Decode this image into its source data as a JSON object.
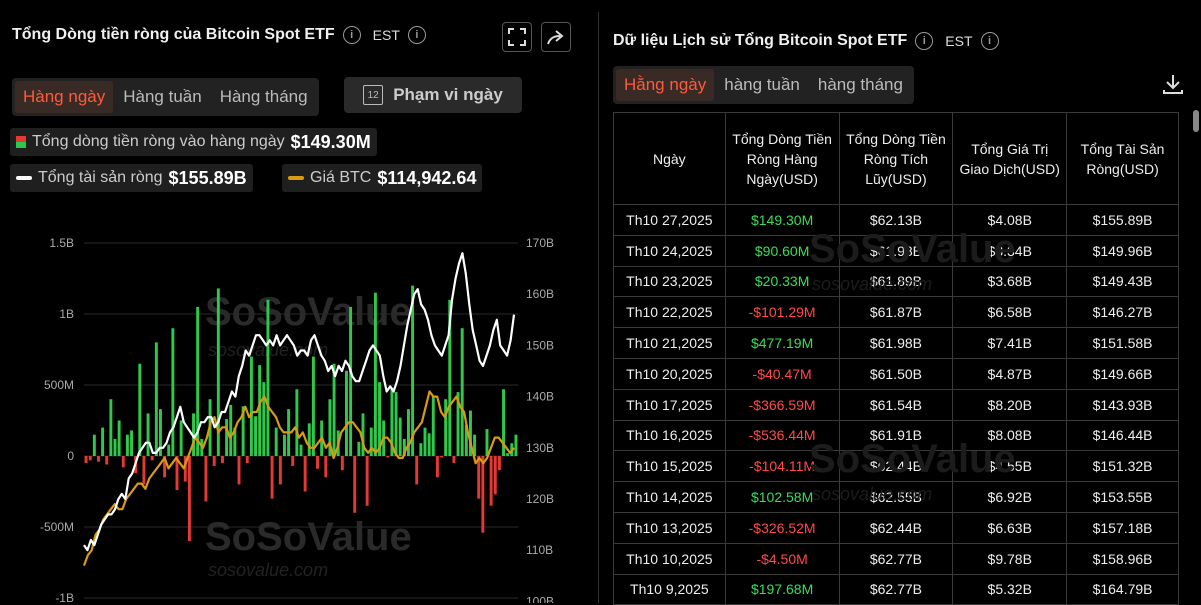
{
  "left": {
    "title": "Tổng Dòng tiền ròng của Bitcoin Spot ETF",
    "tz": "EST",
    "tabs": [
      "Hàng ngày",
      "Hàng tuần",
      "Hàng tháng"
    ],
    "range_label": "Phạm vi ngày",
    "range_icon_text": "12",
    "legend": {
      "inflow_label": "Tổng dòng tiền ròng vào hàng ngày",
      "inflow_value": "$149.30M",
      "assets_label": "Tổng tài sản ròng",
      "assets_value": "$155.89B",
      "btc_label": "Giá BTC",
      "btc_value": "$114,942.64"
    },
    "watermark": "SoSoValue",
    "watermark_sub": "sosovalue.com"
  },
  "right": {
    "title": "Dữ liệu Lịch sử Tổng Bitcoin Spot ETF",
    "tz": "EST",
    "tabs": [
      "Hằng ngày",
      "hàng tuần",
      "hàng tháng"
    ],
    "columns": [
      "Ngày",
      "Tổng Dòng Tiền Ròng Hàng Ngày(USD)",
      "Tổng Dòng Tiền Ròng Tích Lũy(USD)",
      "Tổng Giá Trị Giao Dịch(USD)",
      "Tổng Tài Sản Ròng(USD)"
    ],
    "rows": [
      [
        "Th10 27,2025",
        "$149.30M",
        "$62.13B",
        "$4.08B",
        "$155.89B"
      ],
      [
        "Th10 24,2025",
        "$90.60M",
        "$61.98B",
        "$3.34B",
        "$149.96B"
      ],
      [
        "Th10 23,2025",
        "$20.33M",
        "$61.89B",
        "$3.68B",
        "$149.43B"
      ],
      [
        "Th10 22,2025",
        "-$101.29M",
        "$61.87B",
        "$6.58B",
        "$146.27B"
      ],
      [
        "Th10 21,2025",
        "$477.19M",
        "$61.98B",
        "$7.41B",
        "$151.58B"
      ],
      [
        "Th10 20,2025",
        "-$40.47M",
        "$61.50B",
        "$4.87B",
        "$149.66B"
      ],
      [
        "Th10 17,2025",
        "-$366.59M",
        "$61.54B",
        "$8.20B",
        "$143.93B"
      ],
      [
        "Th10 16,2025",
        "-$536.44M",
        "$61.91B",
        "$8.08B",
        "$146.44B"
      ],
      [
        "Th10 15,2025",
        "-$104.11M",
        "$62.44B",
        "$4.55B",
        "$151.32B"
      ],
      [
        "Th10 14,2025",
        "$102.58M",
        "$62.55B",
        "$6.92B",
        "$153.55B"
      ],
      [
        "Th10 13,2025",
        "-$326.52M",
        "$62.44B",
        "$6.63B",
        "$157.18B"
      ],
      [
        "Th10 10,2025",
        "-$4.50M",
        "$62.77B",
        "$9.78B",
        "$158.96B"
      ],
      [
        "Th10 9,2025",
        "$197.68M",
        "$62.77B",
        "$5.32B",
        "$164.79B"
      ]
    ]
  },
  "chart_data": {
    "type": "bar",
    "left_axis_ticks": [
      "1.5B",
      "1B",
      "500M",
      "0",
      "-500M",
      "-1B"
    ],
    "right_axis_ticks": [
      "170B",
      "160B",
      "150B",
      "140B",
      "130B",
      "120B",
      "110B",
      "100B"
    ],
    "ylim_left": [
      -1000,
      1500
    ],
    "ylim_right": [
      100,
      170
    ],
    "colors": {
      "positive": "#2ec94b",
      "negative": "#e53935",
      "assets": "#ffffff",
      "btc": "#d99a14"
    },
    "series": [
      {
        "name": "Tổng dòng tiền ròng vào hàng ngày",
        "type": "bar",
        "values": [
          -50,
          -30,
          150,
          -40,
          200,
          -60,
          400,
          120,
          250,
          -80,
          150,
          180,
          -120,
          650,
          -200,
          300,
          -30,
          800,
          330,
          -150,
          80,
          900,
          -240,
          250,
          -180,
          -600,
          300,
          1050,
          120,
          -320,
          400,
          -70,
          1180,
          -50,
          260,
          360,
          200,
          -200,
          350,
          -50,
          700,
          280,
          640,
          520,
          1100,
          -300,
          200,
          -200,
          150,
          330,
          -70,
          470,
          80,
          -250,
          230,
          700,
          -90,
          250,
          -150,
          400,
          650,
          180,
          -100,
          600,
          1050,
          -400,
          100,
          300,
          -350,
          200,
          1150,
          520,
          250,
          -10,
          480,
          450,
          270,
          120,
          330,
          1200,
          -200,
          90,
          200,
          160,
          420,
          -150,
          -10,
          400,
          1100,
          -50,
          450,
          900,
          220,
          320,
          150,
          -300,
          -540,
          190,
          -350,
          -270,
          -100,
          470,
          20,
          90,
          150
        ]
      },
      {
        "name": "Tổng tài sản ròng",
        "type": "line",
        "axis": "right",
        "values": [
          111,
          110,
          112,
          111,
          113,
          115,
          116,
          117,
          117,
          118,
          120,
          121,
          120,
          124,
          125,
          127,
          129,
          130,
          131,
          131,
          129,
          129,
          130,
          130,
          131,
          133,
          134,
          136,
          138,
          135,
          134,
          133,
          132,
          133,
          135,
          135,
          136,
          136,
          134,
          135,
          137,
          137,
          139,
          141,
          140,
          144,
          146,
          149,
          148,
          150,
          152,
          152,
          151,
          150,
          151,
          150,
          152,
          150,
          151,
          152,
          151,
          150,
          148,
          149,
          149,
          148,
          151,
          152,
          150,
          148,
          147,
          145,
          146,
          144,
          146,
          145,
          147,
          146,
          144,
          143,
          143,
          145,
          147,
          149,
          150,
          149,
          148,
          144,
          141,
          142,
          141,
          143,
          146,
          150,
          154,
          157,
          160,
          161,
          158,
          157,
          155,
          152,
          150,
          149,
          148,
          150,
          152,
          159,
          163,
          166,
          168,
          164,
          158,
          153,
          150,
          147,
          146,
          148,
          150,
          153,
          155,
          150,
          149,
          148,
          151,
          156
        ]
      },
      {
        "name": "Giá BTC",
        "type": "line",
        "axis": "right",
        "values": [
          107,
          109,
          110,
          113,
          114,
          116,
          117,
          118,
          119,
          118,
          118,
          120,
          121,
          122,
          123,
          123,
          122,
          124,
          125,
          126,
          127,
          128,
          126,
          127,
          128,
          127,
          126,
          128,
          130,
          132,
          131,
          130,
          132,
          135,
          136,
          133,
          134,
          134,
          132,
          133,
          135,
          136,
          138,
          136,
          137,
          137,
          139,
          140,
          138,
          137,
          136,
          134,
          133,
          133,
          133,
          134,
          132,
          133,
          131,
          130,
          130,
          131,
          132,
          130,
          131,
          128,
          130,
          133,
          134,
          135,
          135,
          134,
          133,
          130,
          129,
          130,
          129,
          130,
          132,
          132,
          131,
          129,
          128,
          128,
          130,
          131,
          133,
          134,
          135,
          138,
          141,
          140,
          140,
          137,
          136,
          138,
          139,
          140,
          138,
          137,
          133,
          130,
          127,
          128,
          127,
          128,
          130,
          132,
          132,
          131,
          130,
          129,
          130
        ]
      }
    ]
  }
}
